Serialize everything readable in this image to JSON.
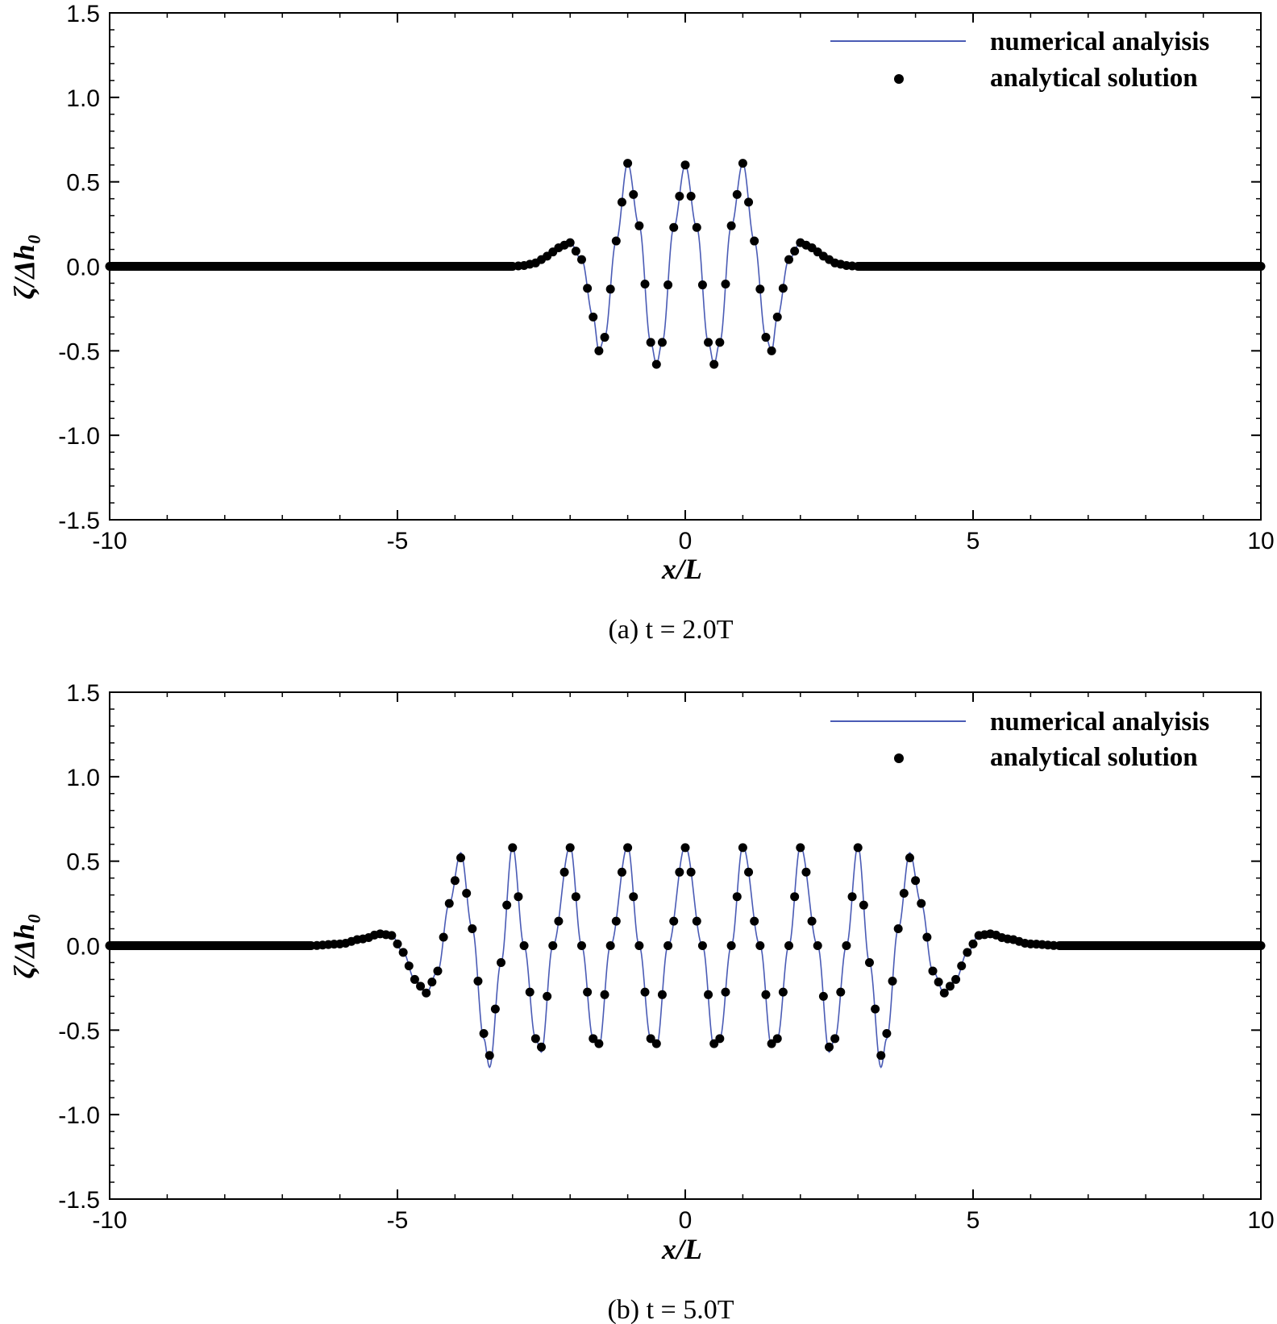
{
  "colors": {
    "numerical_line": "#4a5bb5",
    "analytical_points": "#000000",
    "axis": "#000000"
  },
  "chart_data": [
    {
      "type": "line",
      "caption": "(a)  t = 2.0T",
      "xlabel": "x/L",
      "ylabel": "ζ/Δh₀",
      "xlim": [
        -10,
        10
      ],
      "ylim": [
        -1.5,
        1.5
      ],
      "xticks": [
        -10,
        -5,
        0,
        5,
        10
      ],
      "yticks": [
        -1.5,
        -1.0,
        -0.5,
        0.0,
        0.5,
        1.0,
        1.5
      ],
      "xtick_labels": [
        "-10",
        "-5",
        "0",
        "5",
        "10"
      ],
      "ytick_labels": [
        "-1.5",
        "-1.0",
        "-0.5",
        "0.0",
        "0.5",
        "1.0",
        "1.5"
      ],
      "legend": [
        "numerical analyisis",
        "analytical solution"
      ],
      "legend_position": "top-right",
      "grid": false,
      "series": [
        {
          "name": "numerical analyisis",
          "style": "line",
          "x": [
            -10.0,
            -3.0,
            -2.8,
            -2.6,
            -2.4,
            -2.2,
            -2.0,
            -1.8,
            -1.6,
            -1.5,
            -1.4,
            -1.2,
            -1.0,
            -0.8,
            -0.6,
            -0.5,
            -0.4,
            -0.2,
            0.0,
            0.2,
            0.4,
            0.5,
            0.6,
            0.8,
            1.0,
            1.2,
            1.4,
            1.5,
            1.6,
            1.8,
            2.0,
            2.2,
            2.4,
            2.6,
            2.8,
            3.0,
            10.0
          ],
          "y": [
            0.0,
            0.0,
            0.005,
            0.02,
            0.06,
            0.11,
            0.14,
            0.04,
            -0.3,
            -0.5,
            -0.42,
            0.15,
            0.61,
            0.24,
            -0.45,
            -0.58,
            -0.45,
            0.23,
            0.6,
            0.23,
            -0.45,
            -0.58,
            -0.45,
            0.24,
            0.61,
            0.15,
            -0.42,
            -0.5,
            -0.3,
            0.04,
            0.14,
            0.11,
            0.06,
            0.02,
            0.005,
            0.0,
            0.0
          ]
        },
        {
          "name": "analytical solution",
          "style": "markers",
          "x": [
            -10.0,
            -3.0,
            -2.8,
            -2.6,
            -2.4,
            -2.2,
            -2.0,
            -1.8,
            -1.6,
            -1.5,
            -1.4,
            -1.2,
            -1.0,
            -0.8,
            -0.6,
            -0.5,
            -0.4,
            -0.2,
            0.0,
            0.2,
            0.4,
            0.5,
            0.6,
            0.8,
            1.0,
            1.2,
            1.4,
            1.5,
            1.6,
            1.8,
            2.0,
            2.2,
            2.4,
            2.6,
            2.8,
            3.0,
            10.0
          ],
          "y": [
            0.0,
            0.0,
            0.005,
            0.02,
            0.06,
            0.11,
            0.14,
            0.04,
            -0.3,
            -0.5,
            -0.42,
            0.15,
            0.61,
            0.24,
            -0.45,
            -0.58,
            -0.45,
            0.23,
            0.6,
            0.23,
            -0.45,
            -0.58,
            -0.45,
            0.24,
            0.61,
            0.15,
            -0.42,
            -0.5,
            -0.3,
            0.04,
            0.14,
            0.11,
            0.06,
            0.02,
            0.005,
            0.0,
            0.0
          ]
        }
      ]
    },
    {
      "type": "line",
      "caption": "(b)  t = 5.0T",
      "xlabel": "x/L",
      "ylabel": "ζ/Δh₀",
      "xlim": [
        -10,
        10
      ],
      "ylim": [
        -1.5,
        1.5
      ],
      "xticks": [
        -10,
        -5,
        0,
        5,
        10
      ],
      "yticks": [
        -1.5,
        -1.0,
        -0.5,
        0.0,
        0.5,
        1.0,
        1.5
      ],
      "xtick_labels": [
        "-10",
        "-5",
        "0",
        "5",
        "10"
      ],
      "ytick_labels": [
        "-1.5",
        "-1.0",
        "-0.5",
        "0.0",
        "0.5",
        "1.0",
        "1.5"
      ],
      "legend": [
        "numerical analyisis",
        "analytical solution"
      ],
      "legend_position": "top-right",
      "grid": false,
      "series": [
        {
          "name": "numerical analyisis",
          "style": "line",
          "x": [
            -10.0,
            -6.5,
            -6.0,
            -5.6,
            -5.3,
            -5.1,
            -4.9,
            -4.7,
            -4.5,
            -4.3,
            -4.1,
            -3.9,
            -3.7,
            -3.5,
            -3.4,
            -3.2,
            -3.0,
            -2.8,
            -2.6,
            -2.5,
            -2.3,
            -2.0,
            -1.8,
            -1.6,
            -1.5,
            -1.3,
            -1.0,
            -0.8,
            -0.6,
            -0.5,
            -0.3,
            0.0,
            0.3,
            0.5,
            0.6,
            0.8,
            1.0,
            1.3,
            1.5,
            1.6,
            1.8,
            2.0,
            2.3,
            2.5,
            2.6,
            2.8,
            3.0,
            3.2,
            3.4,
            3.5,
            3.7,
            3.9,
            4.1,
            4.3,
            4.5,
            4.7,
            4.9,
            5.1,
            5.3,
            5.6,
            6.0,
            6.5,
            10.0
          ],
          "y": [
            0.0,
            0.0,
            0.01,
            0.04,
            0.07,
            0.06,
            -0.04,
            -0.2,
            -0.28,
            -0.15,
            0.25,
            0.55,
            0.1,
            -0.55,
            -0.72,
            -0.1,
            0.59,
            0.0,
            -0.55,
            -0.63,
            0.0,
            0.59,
            0.0,
            -0.55,
            -0.6,
            0.0,
            0.59,
            0.0,
            -0.55,
            -0.6,
            0.0,
            0.59,
            0.0,
            -0.6,
            -0.55,
            0.0,
            0.59,
            0.0,
            -0.6,
            -0.55,
            0.0,
            0.59,
            0.0,
            -0.63,
            -0.55,
            0.0,
            0.59,
            -0.1,
            -0.72,
            -0.55,
            0.1,
            0.55,
            0.25,
            -0.15,
            -0.28,
            -0.2,
            -0.04,
            0.06,
            0.07,
            0.04,
            0.01,
            0.0,
            0.0
          ]
        },
        {
          "name": "analytical solution",
          "style": "markers",
          "x": [
            -10.0,
            -6.5,
            -6.0,
            -5.6,
            -5.3,
            -5.1,
            -4.9,
            -4.7,
            -4.5,
            -4.3,
            -4.1,
            -3.9,
            -3.7,
            -3.5,
            -3.4,
            -3.2,
            -3.0,
            -2.8,
            -2.6,
            -2.5,
            -2.3,
            -2.0,
            -1.8,
            -1.6,
            -1.5,
            -1.3,
            -1.0,
            -0.8,
            -0.6,
            -0.5,
            -0.3,
            0.0,
            0.3,
            0.5,
            0.6,
            0.8,
            1.0,
            1.3,
            1.5,
            1.6,
            1.8,
            2.0,
            2.3,
            2.5,
            2.6,
            2.8,
            3.0,
            3.2,
            3.4,
            3.5,
            3.7,
            3.9,
            4.1,
            4.3,
            4.5,
            4.7,
            4.9,
            5.1,
            5.3,
            5.6,
            6.0,
            6.5,
            10.0
          ],
          "y": [
            0.0,
            0.0,
            0.01,
            0.04,
            0.07,
            0.06,
            -0.04,
            -0.2,
            -0.28,
            -0.15,
            0.25,
            0.52,
            0.1,
            -0.52,
            -0.65,
            -0.1,
            0.58,
            0.0,
            -0.55,
            -0.6,
            0.0,
            0.58,
            0.0,
            -0.55,
            -0.58,
            0.0,
            0.58,
            0.0,
            -0.55,
            -0.58,
            0.0,
            0.58,
            0.0,
            -0.58,
            -0.55,
            0.0,
            0.58,
            0.0,
            -0.58,
            -0.55,
            0.0,
            0.58,
            0.0,
            -0.6,
            -0.55,
            0.0,
            0.58,
            -0.1,
            -0.65,
            -0.52,
            0.1,
            0.52,
            0.25,
            -0.15,
            -0.28,
            -0.2,
            -0.04,
            0.06,
            0.07,
            0.04,
            0.01,
            0.0,
            0.0
          ]
        }
      ]
    }
  ]
}
